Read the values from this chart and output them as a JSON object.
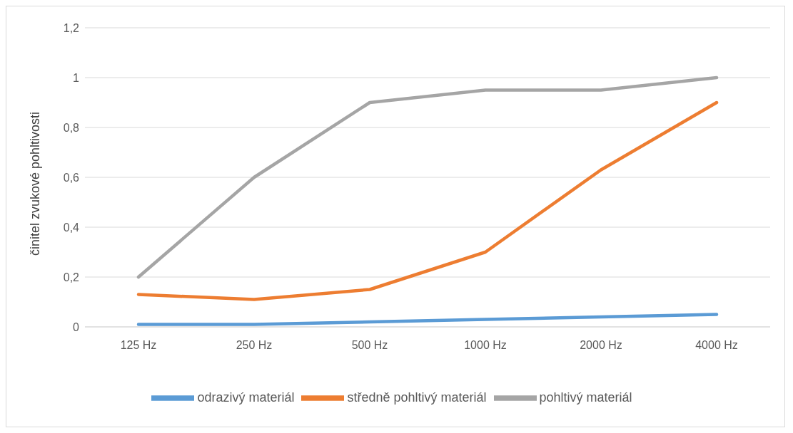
{
  "chart_data": {
    "type": "line",
    "ylabel": "činitel zvukové pohltivosti",
    "categories": [
      "125 Hz",
      "250 Hz",
      "500 Hz",
      "1000 Hz",
      "2000 Hz",
      "4000 Hz"
    ],
    "series": [
      {
        "name": "odrazivý materiál",
        "color": "#5b9bd5",
        "values": [
          0.01,
          0.01,
          0.02,
          0.03,
          0.04,
          0.05
        ]
      },
      {
        "name": "středně pohltivý materiál",
        "color": "#ed7d31",
        "values": [
          0.13,
          0.11,
          0.15,
          0.3,
          0.63,
          0.9
        ]
      },
      {
        "name": "pohltivý materiál",
        "color": "#a5a5a5",
        "values": [
          0.2,
          0.6,
          0.9,
          0.95,
          0.95,
          1.0
        ]
      }
    ],
    "ylim": [
      0,
      1.2
    ],
    "yticks": [
      {
        "value": 0,
        "label": "0"
      },
      {
        "value": 0.2,
        "label": "0,2"
      },
      {
        "value": 0.4,
        "label": "0,4"
      },
      {
        "value": 0.6,
        "label": "0,6"
      },
      {
        "value": 0.8,
        "label": "0,8"
      },
      {
        "value": 1,
        "label": "1"
      },
      {
        "value": 1.2,
        "label": "1,2"
      }
    ],
    "grid": "y",
    "legend": "bottom",
    "marker": "none",
    "line_style": "solid"
  }
}
